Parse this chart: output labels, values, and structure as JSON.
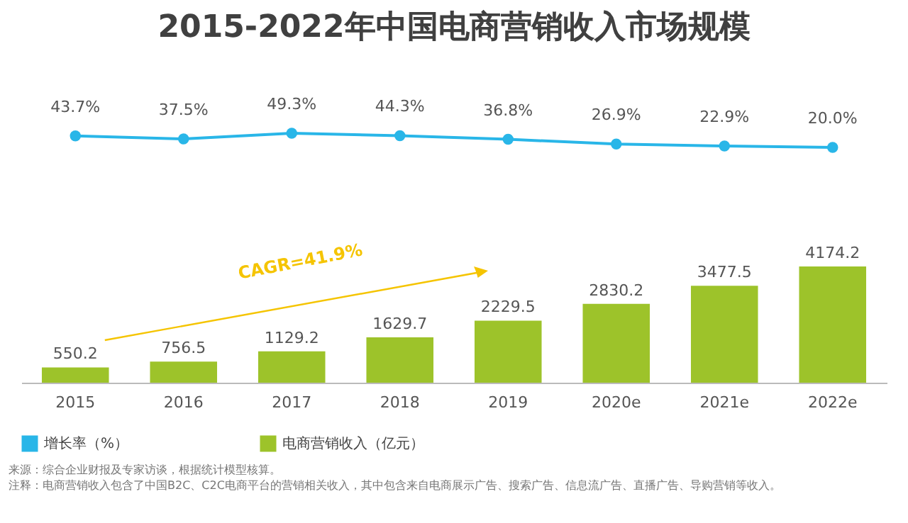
{
  "chart_data": [
    {
      "type": "line",
      "title": "2015-2022年中国电商营销收入市场规模",
      "categories": [
        null,
        null,
        null,
        null,
        null,
        null,
        null,
        null
      ],
      "series": [
        {
          "name": "增长率（%）",
          "color": "#29b6e8",
          "values": [
            43.7,
            37.5,
            49.3,
            44.3,
            36.8,
            26.9,
            22.9,
            20.0
          ],
          "value_labels": [
            "43.7%",
            "37.5%",
            "49.3%",
            "44.3%",
            "36.8%",
            "26.9%",
            "22.9%",
            "20.0%"
          ]
        }
      ],
      "tick_labels": false,
      "legend": "bottom",
      "grid": false,
      "marker": "circle"
    },
    {
      "type": "bar",
      "categories": [
        "2015",
        "2016",
        "2017",
        "2018",
        "2019",
        "2020e",
        "2021e",
        "2022e"
      ],
      "series": [
        {
          "name": "电商营销收入（亿元）",
          "color": "#9dc32a",
          "values": [
            550.2,
            756.5,
            1129.2,
            1629.7,
            2229.5,
            2830.2,
            3477.5,
            4174.2
          ],
          "value_labels": [
            "550.2",
            "756.5",
            "1129.2",
            "1629.7",
            "2229.5",
            "2830.2",
            "3477.5",
            "4174.2"
          ]
        }
      ],
      "tick_labels": "x",
      "legend": "bottom",
      "grid": false,
      "annotations": [
        "CAGR=41.9%",
        "来源：综合企业财报及专家访谈，根据统计模型核算。",
        "注释：电商营销收入包含了中国B2C、C2C电商平台的营销相关收入，其中包含来自电商展示广告、搜索广告、信息流广告、直播广告、导购营销等收入。"
      ]
    }
  ]
}
